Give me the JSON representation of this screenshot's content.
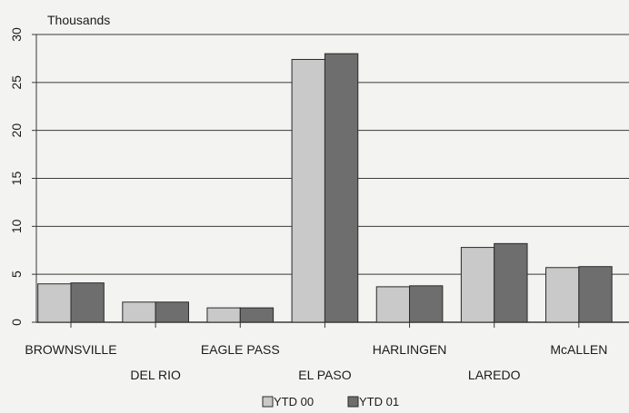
{
  "chart_data": {
    "type": "bar",
    "unit_label": "Thousands",
    "categories": [
      "BROWNSVILLE",
      "DEL RIO",
      "EAGLE PASS",
      "EL PASO",
      "HARLINGEN",
      "LAREDO",
      "McALLEN"
    ],
    "series": [
      {
        "name": "YTD 00",
        "values": [
          4.0,
          2.1,
          1.5,
          27.4,
          3.7,
          7.8,
          5.7
        ],
        "color": "#c9c9c9"
      },
      {
        "name": "YTD 01",
        "values": [
          4.1,
          2.1,
          1.5,
          28.0,
          3.8,
          8.2,
          5.8
        ],
        "color": "#6e6e6e"
      }
    ],
    "ylim": [
      0,
      30
    ],
    "yticks": [
      0,
      5,
      10,
      15,
      20,
      25,
      30
    ],
    "grid": true,
    "legend_position": "bottom"
  }
}
